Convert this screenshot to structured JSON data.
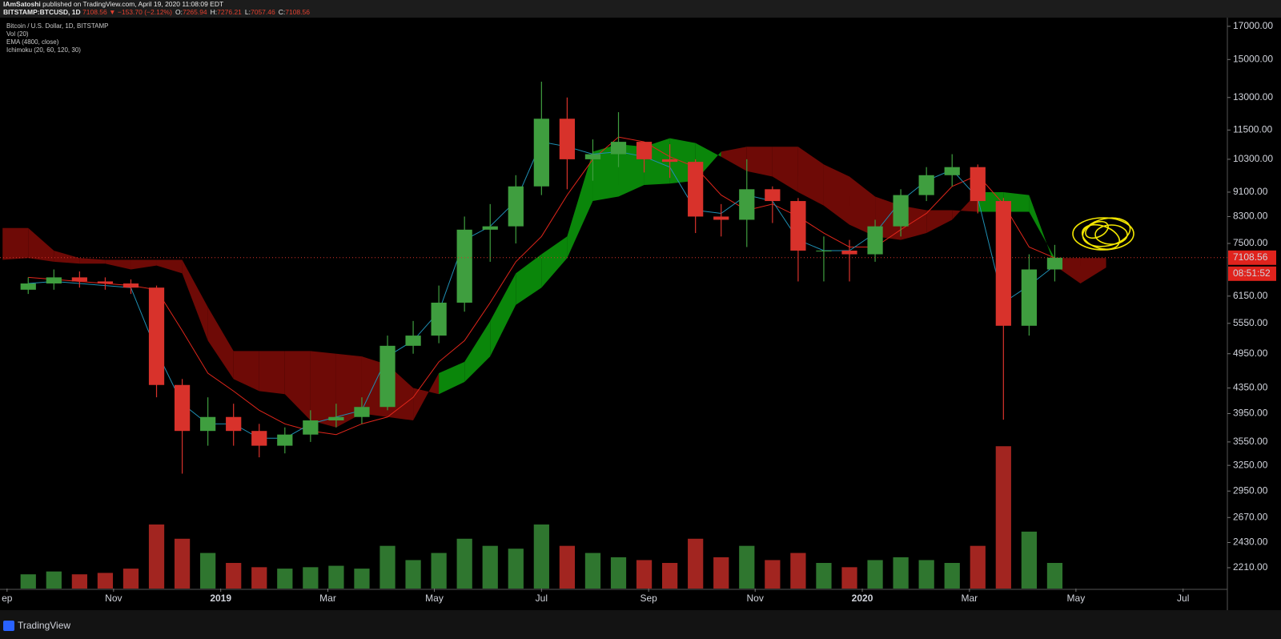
{
  "header": {
    "author": "IAmSatoshi",
    "published": "published on TradingView.com, April 19, 2020 11:08:09 EDT",
    "symbol": "BITSTAMP:BTCUSD, 1D",
    "change": "7108.56 ▼ −153.70 (−2.12%)",
    "ohlc": [
      {
        "label": "O:",
        "value": "7265.94"
      },
      {
        "label": "H:",
        "value": "7276.21"
      },
      {
        "label": "L:",
        "value": "7057.46"
      },
      {
        "label": "C:",
        "value": "7108.56"
      }
    ]
  },
  "footer": {
    "brand": "TradingView"
  },
  "chart_data": {
    "type": "candlestick",
    "title": "Bitcoin / U.S. Dollar, 1D, BITSTAMP",
    "indicators": [
      "Vol (20)",
      "EMA (4800, close)",
      "Ichimoku (20, 60, 120, 30)"
    ],
    "log_scale": true,
    "xlim": [
      2018.656,
      2020.569
    ],
    "xticks": [
      {
        "value": 2018.667,
        "label": "ep"
      },
      {
        "value": 2018.833,
        "label": "Nov"
      },
      2019,
      {
        "value": 2019.167,
        "label": "Mar"
      },
      {
        "value": 2019.333,
        "label": "May"
      },
      {
        "value": 2019.5,
        "label": "Jul"
      },
      {
        "value": 2019.667,
        "label": "Sep"
      },
      {
        "value": 2019.833,
        "label": "Nov"
      },
      2020,
      {
        "value": 2020.167,
        "label": "Mar"
      },
      {
        "value": 2020.333,
        "label": "May"
      },
      {
        "value": 2020.5,
        "label": "Jul"
      }
    ],
    "ylim": [
      2043,
      17460
    ],
    "yticks": [
      {
        "value": 17000,
        "label": "17000.00"
      },
      {
        "value": 15000,
        "label": "15000.00"
      },
      {
        "value": 13000,
        "label": "13000.00"
      },
      {
        "value": 11500,
        "label": "11500.00"
      },
      {
        "value": 10300,
        "label": "10300.00"
      },
      {
        "value": 9100,
        "label": "9100.00"
      },
      {
        "value": 8300,
        "label": "8300.00"
      },
      {
        "value": 7500,
        "label": "7500.00"
      },
      {
        "value": 6150,
        "label": "6150.00"
      },
      {
        "value": 5550,
        "label": "5550.00"
      },
      {
        "value": 4950,
        "label": "4950.00"
      },
      {
        "value": 4350,
        "label": "4350.00"
      },
      {
        "value": 3950,
        "label": "3950.00"
      },
      {
        "value": 3550,
        "label": "3550.00"
      },
      {
        "value": 3250,
        "label": "3250.00"
      },
      {
        "value": 2950,
        "label": "2950.00"
      },
      {
        "value": 2670,
        "label": "2670.00"
      },
      {
        "value": 2430,
        "label": "2430.00"
      },
      {
        "value": 2210,
        "label": "2210.00"
      }
    ],
    "y2lim": [
      0,
      100
    ],
    "up_color": "#3f9e3f",
    "down_color": "#d8322b",
    "x": [
      2018.7,
      2018.74,
      2018.78,
      2018.82,
      2018.86,
      2018.9,
      2018.94,
      2018.98,
      2019.02,
      2019.06,
      2019.1,
      2019.14,
      2019.18,
      2019.22,
      2019.26,
      2019.3,
      2019.34,
      2019.38,
      2019.42,
      2019.46,
      2019.5,
      2019.54,
      2019.58,
      2019.62,
      2019.66,
      2019.7,
      2019.74,
      2019.78,
      2019.82,
      2019.86,
      2019.9,
      2019.94,
      2019.98,
      2020.02,
      2020.06,
      2020.1,
      2020.14,
      2020.18,
      2020.22,
      2020.26,
      2020.3
    ],
    "open": [
      6300,
      6450,
      6600,
      6500,
      6450,
      6350,
      4400,
      3700,
      3900,
      3700,
      3500,
      3650,
      3850,
      3900,
      4050,
      5100,
      5300,
      6000,
      7900,
      8000,
      9300,
      12000,
      10300,
      10500,
      11000,
      10300,
      10200,
      8300,
      8200,
      9200,
      8800,
      7300,
      7300,
      7200,
      8000,
      9000,
      9700,
      10000,
      8800,
      5500,
      6800
    ],
    "high": [
      6600,
      6800,
      6750,
      6600,
      6550,
      6400,
      4500,
      4200,
      4100,
      3800,
      3750,
      4000,
      4100,
      4200,
      5300,
      5600,
      6400,
      8300,
      8700,
      9700,
      13800,
      13000,
      11100,
      12300,
      11000,
      10900,
      10300,
      8700,
      10300,
      9300,
      8900,
      7700,
      7600,
      8200,
      9200,
      10000,
      10500,
      10100,
      8900,
      7200,
      7460
    ],
    "low": [
      6200,
      6300,
      6350,
      6300,
      6200,
      4200,
      3150,
      3500,
      3500,
      3350,
      3400,
      3550,
      3750,
      3800,
      4000,
      4950,
      5150,
      5800,
      7000,
      7500,
      9000,
      9200,
      9500,
      10000,
      9800,
      9600,
      7800,
      7700,
      7400,
      8100,
      6500,
      6500,
      6500,
      7000,
      7700,
      8800,
      9300,
      8400,
      3860,
      5300,
      6500
    ],
    "close": [
      6450,
      6600,
      6500,
      6450,
      6350,
      4400,
      3700,
      3900,
      3700,
      3500,
      3650,
      3850,
      3900,
      4050,
      5100,
      5300,
      6000,
      7900,
      8000,
      9300,
      12000,
      10300,
      10500,
      11000,
      10300,
      10200,
      8300,
      8200,
      9200,
      8800,
      7300,
      7300,
      7200,
      8000,
      9000,
      9700,
      10000,
      8800,
      5500,
      6800,
      7108.56
    ],
    "volume": {
      "axis": "y2",
      "values": [
        10,
        12,
        10,
        11,
        14,
        45,
        35,
        25,
        18,
        15,
        14,
        15,
        16,
        14,
        30,
        20,
        25,
        35,
        30,
        28,
        45,
        30,
        25,
        22,
        20,
        18,
        35,
        22,
        30,
        20,
        25,
        18,
        15,
        20,
        22,
        20,
        18,
        30,
        100,
        40,
        18
      ]
    },
    "tenkan": {
      "color": "#1f8fb3",
      "values": [
        6450,
        6500,
        6450,
        6400,
        6350,
        5000,
        4100,
        3800,
        3800,
        3600,
        3600,
        3800,
        3900,
        4000,
        4900,
        5200,
        5800,
        7600,
        8000,
        8800,
        11000,
        10800,
        10500,
        10600,
        10400,
        10000,
        8500,
        8400,
        9000,
        8800,
        7600,
        7300,
        7300,
        7800,
        8800,
        9500,
        9900,
        8900,
        6000,
        6400,
        6900
      ]
    },
    "kijun": {
      "color": "#e0261b",
      "values": [
        6600,
        6550,
        6500,
        6450,
        6400,
        6300,
        5400,
        4600,
        4300,
        4000,
        3800,
        3700,
        3650,
        3800,
        3900,
        4200,
        4800,
        5200,
        6000,
        7000,
        7700,
        9000,
        10300,
        11200,
        11000,
        10400,
        10000,
        9000,
        8500,
        8700,
        8300,
        7800,
        7400,
        7400,
        7900,
        8400,
        9300,
        9700,
        8700,
        7400,
        7100
      ]
    },
    "cloud": {
      "up_color": "#0a860a",
      "down_color": "#6e0a06",
      "x": [
        2018.66,
        2018.7,
        2018.74,
        2018.78,
        2018.82,
        2018.86,
        2018.9,
        2018.94,
        2018.98,
        2019.02,
        2019.06,
        2019.1,
        2019.14,
        2019.18,
        2019.22,
        2019.26,
        2019.3,
        2019.34,
        2019.38,
        2019.42,
        2019.46,
        2019.5,
        2019.54,
        2019.58,
        2019.62,
        2019.66,
        2019.7,
        2019.74,
        2019.78,
        2019.82,
        2019.86,
        2019.9,
        2019.94,
        2019.98,
        2020.02,
        2020.06,
        2020.1,
        2020.14,
        2020.18,
        2020.22,
        2020.26,
        2020.3,
        2020.34,
        2020.38
      ],
      "span_a": [
        7050,
        7100,
        7000,
        6950,
        6950,
        6800,
        6900,
        6700,
        5200,
        4500,
        4300,
        4250,
        3850,
        3750,
        3950,
        3900,
        3850,
        4600,
        4800,
        5600,
        6700,
        7200,
        7700,
        10600,
        10900,
        10800,
        11150,
        10950,
        10400,
        9850,
        9650,
        9100,
        8650,
        8050,
        7700,
        7600,
        7800,
        8200,
        9100,
        9100,
        9000,
        6900,
        6450,
        6850
      ],
      "span_b": [
        7950,
        7950,
        7300,
        7100,
        7050,
        7050,
        7050,
        7050,
        5900,
        5000,
        5000,
        5000,
        5000,
        4950,
        4900,
        4750,
        4350,
        4250,
        4450,
        4900,
        5950,
        6350,
        7100,
        8800,
        8950,
        9350,
        9400,
        9500,
        10600,
        10800,
        10800,
        10800,
        10100,
        9650,
        8950,
        8650,
        8500,
        8500,
        8450,
        8450,
        8450,
        7100,
        7100,
        7100
      ]
    },
    "last_price": 7108.56,
    "countdown": "08:51:52"
  }
}
